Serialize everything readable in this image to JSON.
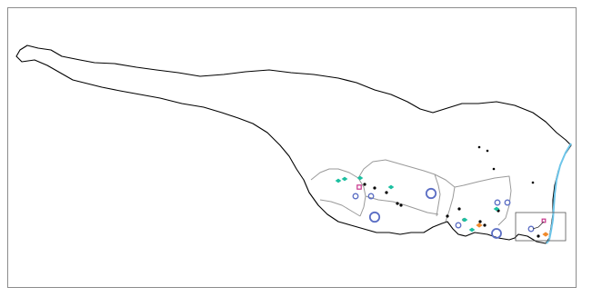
{
  "map": {
    "colors": {
      "outline": "#000000",
      "district": "#9a9a9a",
      "coast": "#6ec6ea",
      "inset_box": "#555555",
      "frame": "#8c8c8c"
    },
    "marker_types": {
      "black-dot": {
        "icon": "black-dot-icon",
        "color": "#000000"
      },
      "blue-ring": {
        "icon": "blue-ring-icon",
        "color": "#5b6ec4"
      },
      "teal-diamond": {
        "icon": "teal-diamond-icon",
        "color": "#1bbfa0"
      },
      "magenta-square": {
        "icon": "magenta-square-icon",
        "color": "#c8328a"
      },
      "orange-diamond": {
        "icon": "orange-diamond-icon",
        "color": "#f08a2c"
      }
    }
  }
}
